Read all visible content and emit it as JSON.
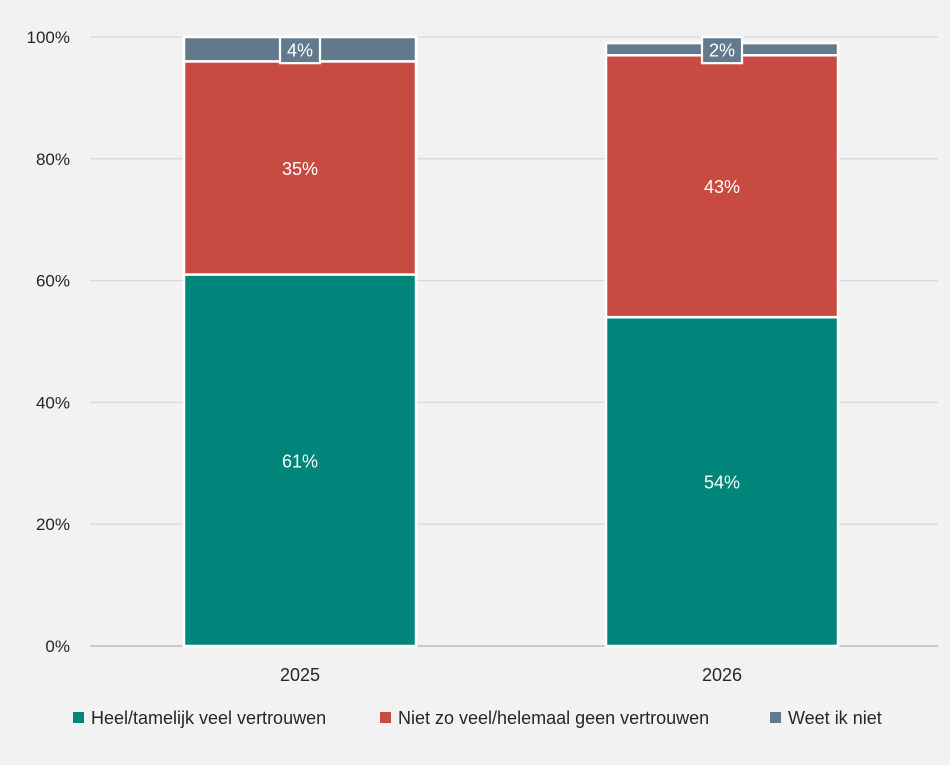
{
  "chart_data": {
    "type": "bar",
    "stacked": true,
    "categories": [
      "2025",
      "2026"
    ],
    "series": [
      {
        "name": "Heel/tamelijk veel vertrouwen",
        "values": [
          61,
          54
        ],
        "color": "#00857a",
        "labels": [
          "61%",
          "54%"
        ]
      },
      {
        "name": "Niet zo veel/helemaal geen vertrouwen",
        "values": [
          35,
          43
        ],
        "color": "#c84b42",
        "labels": [
          "35%",
          "43%"
        ]
      },
      {
        "name": "Weet ik niet",
        "values": [
          4,
          2
        ],
        "color": "#627a8c",
        "labels": [
          "4%",
          "2%"
        ]
      }
    ],
    "ylim": [
      0,
      100
    ],
    "yticks": [
      "0%",
      "20%",
      "40%",
      "60%",
      "80%",
      "100%"
    ],
    "grid": true,
    "legend": "bottom",
    "title": "",
    "xlabel": "",
    "ylabel": ""
  }
}
